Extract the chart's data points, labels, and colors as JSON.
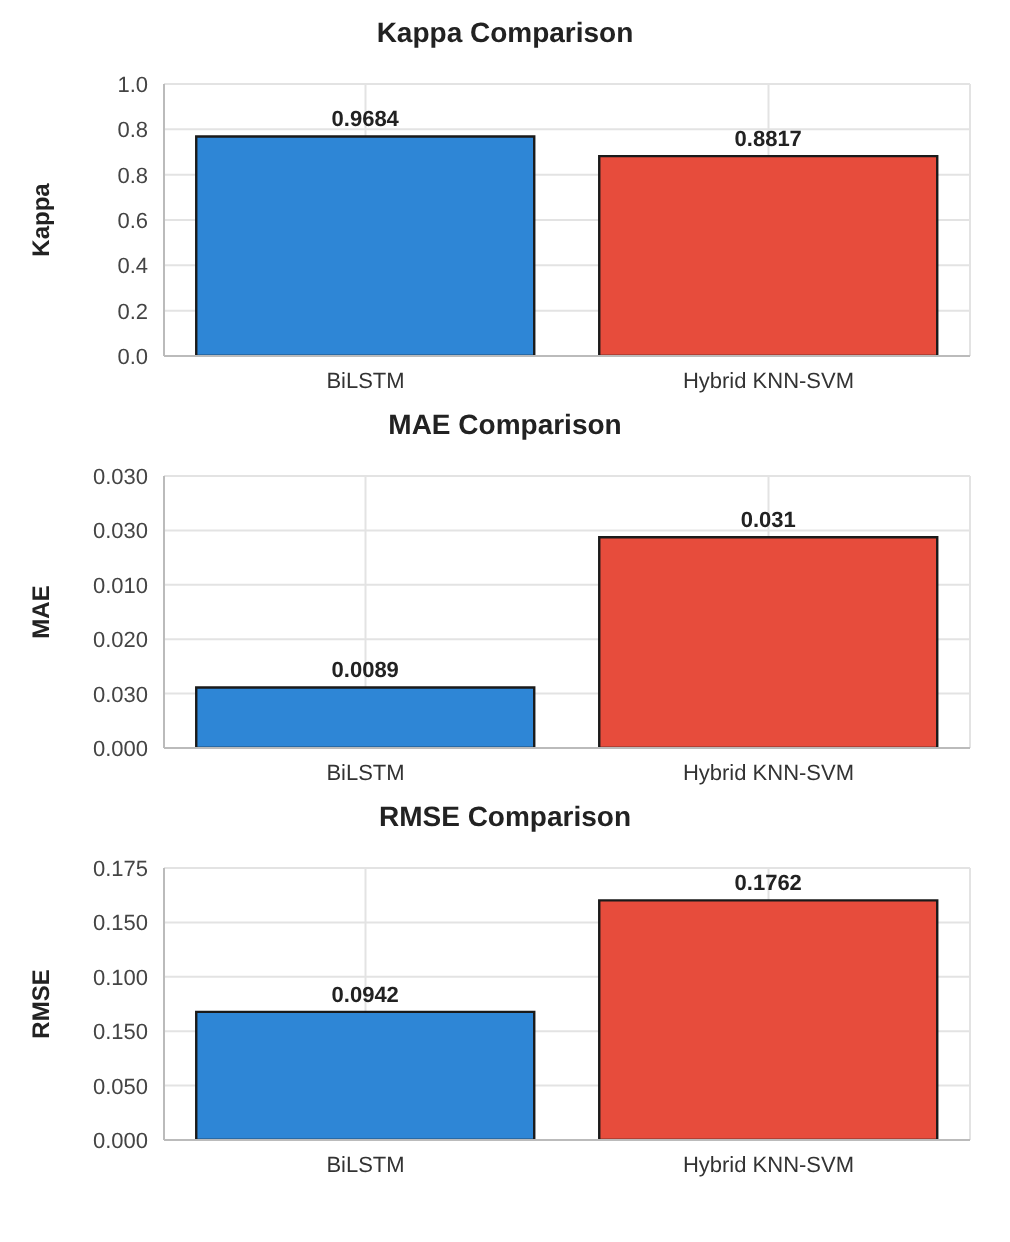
{
  "chart_data": [
    {
      "type": "bar",
      "title": "Kappa Comparison",
      "ylabel": "Kappa",
      "categories": [
        "BiLSTM",
        "Hybrid KNN-SVM"
      ],
      "values": [
        0.9684,
        0.8817
      ],
      "colors": [
        "#2e86d6",
        "#e74c3c"
      ],
      "data_labels": true,
      "ylim": [
        0,
        1.2
      ],
      "yticks": [
        {
          "value": 0,
          "label": null
        },
        {
          "value": 0.2,
          "label": null
        },
        {
          "value": 0.4,
          "label": null
        },
        {
          "value": 0.6,
          "label": null
        },
        {
          "value": 0.8,
          "label": null
        },
        {
          "value": 1.0,
          "label": null
        },
        {
          "value": 1.2,
          "label": null
        }
      ],
      "annotations": [
        "0.0",
        "0.2",
        "0.4",
        "0.6",
        "0.8",
        "0.8",
        "1.0"
      ],
      "grid": true
    },
    {
      "type": "bar",
      "title": "MAE Comparison",
      "ylabel": "MAE",
      "categories": [
        "BiLSTM",
        "Hybrid KNN-SVM"
      ],
      "values": [
        0.0089,
        0.031
      ],
      "colors": [
        "#2e86d6",
        "#e74c3c"
      ],
      "data_labels": true,
      "ylim": [
        0,
        0.04
      ],
      "yticks": [
        {
          "value": 0,
          "label": null
        },
        {
          "value": 0.008,
          "label": null
        },
        {
          "value": 0.016,
          "label": null
        },
        {
          "value": 0.024,
          "label": null
        },
        {
          "value": 0.032,
          "label": null
        },
        {
          "value": 0.04,
          "label": null
        }
      ],
      "annotations": [
        "0.000",
        "0.030",
        "0.020",
        "0.010",
        "0.030",
        "0.030"
      ],
      "grid": true
    },
    {
      "type": "bar",
      "title": "RMSE Comparison",
      "ylabel": "RMSE",
      "categories": [
        "BiLSTM",
        "Hybrid KNN-SVM"
      ],
      "values": [
        0.0942,
        0.1762
      ],
      "colors": [
        "#2e86d6",
        "#e74c3c"
      ],
      "data_labels": true,
      "ylim": [
        0,
        0.2
      ],
      "yticks": [
        {
          "value": 0,
          "label": null
        },
        {
          "value": 0.04,
          "label": null
        },
        {
          "value": 0.08,
          "label": null
        },
        {
          "value": 0.12,
          "label": null
        },
        {
          "value": 0.16,
          "label": null
        },
        {
          "value": 0.2,
          "label": null
        }
      ],
      "annotations": [
        "0.000",
        "0.050",
        "0.150",
        "0.100",
        "0.150",
        "0.175"
      ],
      "grid": true
    }
  ]
}
